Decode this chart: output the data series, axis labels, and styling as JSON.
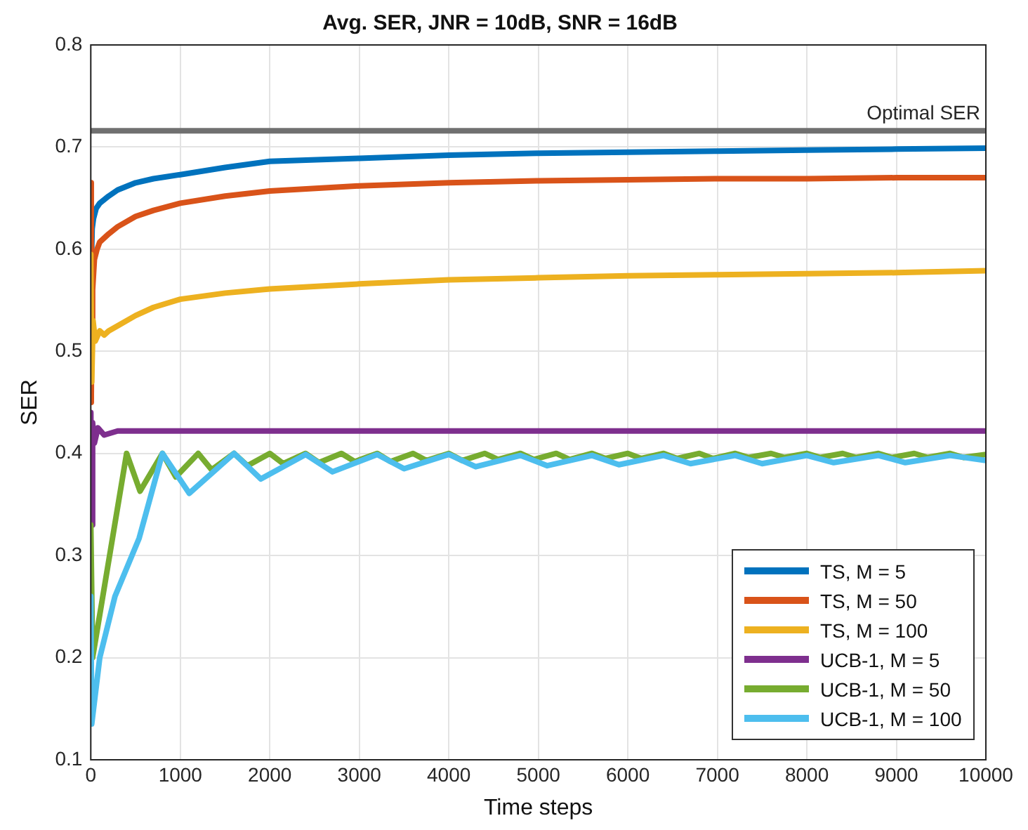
{
  "chart_data": {
    "type": "line",
    "title": "Avg. SER, JNR = 10dB, SNR = 16dB",
    "xlabel": "Time steps",
    "ylabel": "SER",
    "xlim": [
      0,
      10000
    ],
    "xticks": [
      0,
      1000,
      2000,
      3000,
      4000,
      5000,
      6000,
      7000,
      8000,
      9000,
      10000
    ],
    "ylim": [
      0.1,
      0.8
    ],
    "yticks": [
      0.1,
      0.2,
      0.3,
      0.4,
      0.5,
      0.6,
      0.7,
      0.8
    ],
    "grid": true,
    "legend": "bottom right",
    "marker": "none",
    "line_style": "solid",
    "ref_lines": [
      {
        "axis": "y",
        "value": 0.716,
        "label": "Optimal SER",
        "color": "#707070"
      }
    ],
    "series": [
      {
        "name": "TS, M = 5",
        "color": "#0072bd",
        "x": [
          0,
          5,
          15,
          30,
          60,
          100,
          200,
          300,
          500,
          700,
          1000,
          1500,
          2000,
          3000,
          4000,
          5000,
          6000,
          7000,
          8000,
          9000,
          10000
        ],
        "values": [
          0.6,
          0.58,
          0.62,
          0.63,
          0.64,
          0.645,
          0.652,
          0.658,
          0.665,
          0.669,
          0.673,
          0.68,
          0.686,
          0.689,
          0.692,
          0.694,
          0.695,
          0.696,
          0.697,
          0.698,
          0.699
        ]
      },
      {
        "name": "TS, M = 50",
        "color": "#d95319",
        "x": [
          0,
          5,
          10,
          20,
          40,
          70,
          100,
          200,
          300,
          500,
          700,
          1000,
          1500,
          2000,
          3000,
          4000,
          5000,
          6000,
          7000,
          8000,
          9000,
          10000
        ],
        "values": [
          0.665,
          0.45,
          0.52,
          0.56,
          0.59,
          0.6,
          0.607,
          0.615,
          0.622,
          0.632,
          0.638,
          0.645,
          0.652,
          0.657,
          0.662,
          0.665,
          0.667,
          0.668,
          0.669,
          0.669,
          0.67,
          0.67
        ]
      },
      {
        "name": "TS, M = 100",
        "color": "#edb120",
        "x": [
          0,
          10,
          25,
          50,
          100,
          150,
          200,
          300,
          500,
          700,
          1000,
          1500,
          2000,
          3000,
          4000,
          5000,
          6000,
          7000,
          8000,
          9000,
          10000
        ],
        "values": [
          0.595,
          0.47,
          0.53,
          0.51,
          0.52,
          0.516,
          0.52,
          0.525,
          0.535,
          0.543,
          0.551,
          0.557,
          0.561,
          0.566,
          0.57,
          0.572,
          0.574,
          0.575,
          0.576,
          0.577,
          0.579
        ]
      },
      {
        "name": "UCB-1, M = 5",
        "color": "#7e2f8e",
        "x": [
          0,
          10,
          20,
          40,
          80,
          150,
          300,
          1000,
          10000
        ],
        "values": [
          0.44,
          0.33,
          0.43,
          0.41,
          0.425,
          0.418,
          0.422,
          0.422,
          0.422
        ]
      },
      {
        "name": "UCB-1, M = 50",
        "color": "#77ac30",
        "x": [
          0,
          20,
          400,
          550,
          800,
          950,
          1200,
          1350,
          1600,
          1750,
          2000,
          2150,
          2400,
          2550,
          2800,
          2950,
          3200,
          3350,
          3600,
          3750,
          4000,
          4150,
          4400,
          4550,
          4800,
          4950,
          5200,
          5350,
          5600,
          5750,
          6000,
          6150,
          6400,
          6550,
          6800,
          6950,
          7200,
          7350,
          7600,
          7750,
          8000,
          8150,
          8400,
          8550,
          8800,
          8950,
          9200,
          9350,
          9600,
          9750,
          10000
        ],
        "values": [
          0.33,
          0.2,
          0.4,
          0.363,
          0.4,
          0.377,
          0.4,
          0.384,
          0.4,
          0.388,
          0.4,
          0.39,
          0.4,
          0.391,
          0.4,
          0.392,
          0.4,
          0.392,
          0.4,
          0.393,
          0.4,
          0.393,
          0.4,
          0.394,
          0.4,
          0.394,
          0.4,
          0.394,
          0.4,
          0.395,
          0.4,
          0.395,
          0.4,
          0.395,
          0.4,
          0.395,
          0.4,
          0.396,
          0.4,
          0.396,
          0.4,
          0.396,
          0.4,
          0.396,
          0.4,
          0.396,
          0.4,
          0.396,
          0.4,
          0.396,
          0.399
        ]
      },
      {
        "name": "UCB-1, M = 100",
        "color": "#4dbeee",
        "x": [
          0,
          10,
          100,
          270,
          540,
          800,
          1100,
          1600,
          1900,
          2400,
          2700,
          3200,
          3500,
          4000,
          4300,
          4800,
          5100,
          5600,
          5900,
          6400,
          6700,
          7200,
          7500,
          8000,
          8300,
          8800,
          9100,
          9600,
          10000
        ],
        "values": [
          0.26,
          0.135,
          0.2,
          0.26,
          0.317,
          0.4,
          0.361,
          0.4,
          0.375,
          0.399,
          0.382,
          0.399,
          0.385,
          0.399,
          0.387,
          0.398,
          0.388,
          0.398,
          0.389,
          0.398,
          0.39,
          0.398,
          0.39,
          0.398,
          0.391,
          0.398,
          0.391,
          0.398,
          0.393
        ]
      }
    ]
  }
}
